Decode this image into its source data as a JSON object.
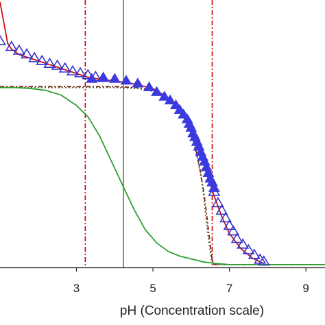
{
  "chart_data": {
    "type": "scatter",
    "xlabel": "pH (Concentration scale)",
    "ylabel": "",
    "title": "",
    "xlim": [
      1.0,
      9.5
    ],
    "ylim": [
      0,
      1.42
    ],
    "grid": false,
    "legend": "none",
    "x_ticks": [
      {
        "value": 3,
        "label": "3"
      },
      {
        "value": 5,
        "label": "5"
      },
      {
        "value": 7,
        "label": "7"
      },
      {
        "value": 9,
        "label": "9"
      }
    ],
    "vertical_lines": [
      {
        "x": 3.23,
        "style": "dash-dot",
        "color": "#cc0000"
      },
      {
        "x": 4.23,
        "style": "solid",
        "color": "#2e9e2e"
      },
      {
        "x": 6.55,
        "style": "dash-dot",
        "color": "#cc0000"
      }
    ],
    "series": [
      {
        "kind": "line",
        "style": "dashdot",
        "color": "#8b1a1a",
        "x": [
          1.0,
          2.0,
          3.0,
          4.0,
          4.6,
          5.0,
          5.4,
          5.7,
          5.9,
          6.05,
          6.15,
          6.25,
          6.33,
          6.4,
          6.45,
          6.5,
          6.55,
          6.6,
          7.0,
          9.5
        ],
        "y": [
          0.96,
          0.96,
          0.96,
          0.96,
          0.955,
          0.94,
          0.9,
          0.84,
          0.77,
          0.68,
          0.6,
          0.5,
          0.4,
          0.29,
          0.2,
          0.12,
          0.04,
          0.015,
          0.015,
          0.015
        ]
      },
      {
        "kind": "line",
        "style": "dotted",
        "color": "#4a6a2a",
        "x": [
          1.0,
          2.0,
          3.0,
          4.0,
          4.6,
          5.0,
          5.4,
          5.7,
          5.9,
          6.05,
          6.15,
          6.25,
          6.32,
          6.38,
          6.43,
          6.48,
          6.52,
          6.58,
          7.0,
          9.5
        ],
        "y": [
          0.955,
          0.955,
          0.955,
          0.955,
          0.95,
          0.935,
          0.895,
          0.835,
          0.765,
          0.675,
          0.59,
          0.49,
          0.39,
          0.28,
          0.19,
          0.11,
          0.05,
          0.015,
          0.015,
          0.015
        ]
      },
      {
        "kind": "line",
        "style": "solid",
        "color": "#2e9e2e",
        "x": [
          1.0,
          1.4,
          1.8,
          2.2,
          2.6,
          3.0,
          3.3,
          3.6,
          3.9,
          4.2,
          4.5,
          4.8,
          5.1,
          5.4,
          5.7,
          6.0,
          6.3,
          6.6,
          7.0,
          9.5
        ],
        "y": [
          0.955,
          0.955,
          0.95,
          0.94,
          0.915,
          0.86,
          0.8,
          0.7,
          0.57,
          0.44,
          0.31,
          0.2,
          0.13,
          0.085,
          0.06,
          0.045,
          0.03,
          0.022,
          0.015,
          0.015
        ]
      },
      {
        "kind": "line",
        "style": "solid",
        "color": "#cc1111",
        "x": [
          1.0,
          1.1,
          1.2,
          1.3,
          1.5,
          1.8,
          2.1,
          2.4,
          2.7,
          3.0,
          3.3,
          3.6,
          4.0,
          4.5,
          5.0,
          5.5,
          5.8,
          6.0,
          6.2,
          6.4,
          6.6,
          6.8,
          7.0,
          7.3,
          7.6,
          7.9
        ],
        "y": [
          1.41,
          1.3,
          1.19,
          1.16,
          1.13,
          1.11,
          1.09,
          1.07,
          1.05,
          1.03,
          1.01,
          1.0,
          0.99,
          0.975,
          0.95,
          0.89,
          0.82,
          0.75,
          0.64,
          0.5,
          0.38,
          0.27,
          0.18,
          0.1,
          0.05,
          0.02
        ]
      },
      {
        "kind": "markers",
        "marker": "triangle-open",
        "color": "#3333cc",
        "x": [
          1.0,
          1.3,
          1.5,
          1.7,
          1.9,
          2.1,
          2.3,
          2.5,
          2.7,
          2.9,
          3.1,
          3.3,
          3.5,
          3.7,
          6.6,
          6.7,
          6.8,
          6.9,
          7.0,
          7.1,
          7.2,
          7.35,
          7.5,
          7.65,
          7.8,
          7.9
        ],
        "y": [
          1.2,
          1.17,
          1.15,
          1.13,
          1.11,
          1.095,
          1.08,
          1.07,
          1.055,
          1.04,
          1.03,
          1.02,
          1.01,
          1.005,
          0.4,
          0.34,
          0.3,
          0.26,
          0.22,
          0.19,
          0.15,
          0.12,
          0.09,
          0.065,
          0.04,
          0.03
        ]
      },
      {
        "kind": "markers",
        "marker": "triangle-filled",
        "color": "#3a3ae0",
        "x": [
          3.4,
          3.7,
          4.0,
          4.3,
          4.6,
          4.9,
          5.1,
          5.3,
          5.45,
          5.6,
          5.7,
          5.8,
          5.9,
          5.95,
          6.0,
          6.05,
          6.1,
          6.15,
          6.2,
          6.25,
          6.3,
          6.35,
          6.4,
          6.45,
          6.5,
          6.55,
          6.6
        ],
        "y": [
          1.0,
          1.005,
          1.0,
          0.99,
          0.975,
          0.955,
          0.93,
          0.905,
          0.885,
          0.86,
          0.835,
          0.81,
          0.785,
          0.76,
          0.74,
          0.71,
          0.69,
          0.665,
          0.64,
          0.61,
          0.585,
          0.56,
          0.53,
          0.5,
          0.47,
          0.45,
          0.42
        ]
      }
    ]
  }
}
